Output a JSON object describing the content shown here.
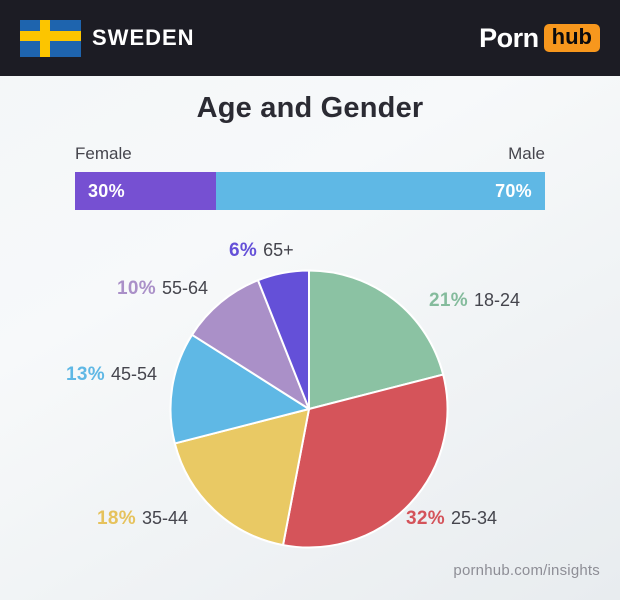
{
  "header": {
    "country": "SWEDEN",
    "flag_name": "sweden-flag",
    "logo": {
      "part1": "Porn",
      "part2": "hub",
      "hub_bg_color": "#f7971d"
    },
    "bg_color": "#1c1c24"
  },
  "title": "Age and Gender",
  "footer": {
    "url": "pornhub.com/insights"
  },
  "chart_data": [
    {
      "type": "bar",
      "subtype": "horizontal-stacked",
      "title": "Gender",
      "categories": [
        "Female",
        "Male"
      ],
      "values": [
        30,
        70
      ],
      "value_labels": [
        "30%",
        "70%"
      ],
      "colors": [
        "#7650d2",
        "#5fb8e5"
      ],
      "left_label": "Female",
      "right_label": "Male"
    },
    {
      "type": "pie",
      "title": "Age",
      "start_angle_deg": 0,
      "direction": "clockwise",
      "legend_position": "around",
      "segments": [
        {
          "label": "18-24",
          "value": 21,
          "value_label": "21%",
          "color": "#8bc2a3",
          "label_color": "#84bb9c"
        },
        {
          "label": "25-34",
          "value": 32,
          "value_label": "32%",
          "color": "#d5545a",
          "label_color": "#d4535a"
        },
        {
          "label": "35-44",
          "value": 18,
          "value_label": "18%",
          "color": "#e9c964",
          "label_color": "#e6c25c"
        },
        {
          "label": "45-54",
          "value": 13,
          "value_label": "13%",
          "color": "#5fb8e5",
          "label_color": "#5fb8e5"
        },
        {
          "label": "55-64",
          "value": 10,
          "value_label": "10%",
          "color": "#aa90c8",
          "label_color": "#aa90c8"
        },
        {
          "label": "65+",
          "value": 6,
          "value_label": "6%",
          "color": "#6450d8",
          "label_color": "#6450d8"
        }
      ]
    }
  ]
}
